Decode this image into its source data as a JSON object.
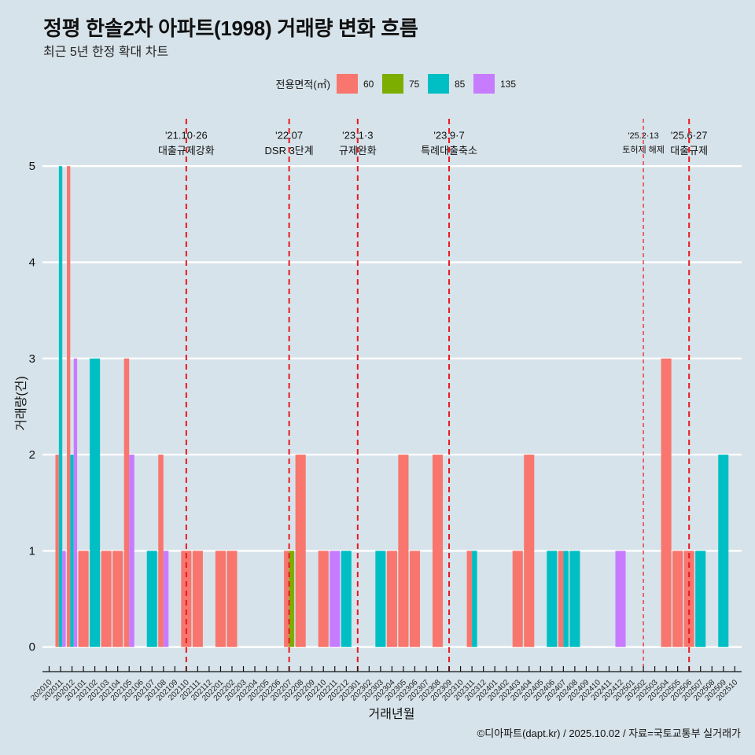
{
  "chart_data": {
    "type": "bar",
    "title": "정평 한솔2차 아파트(1998) 거래량 변화 흐름",
    "subtitle": "최근 5년 한정 확대 차트",
    "xlabel": "거래년월",
    "ylabel": "거래량(건)",
    "ylim": [
      -0.25,
      5.5
    ],
    "y_ticks": [
      0,
      1,
      2,
      3,
      4,
      5
    ],
    "grid": "horizontal",
    "legend": {
      "title": "전용면적(㎡)",
      "position": "top"
    },
    "categories": [
      "202010",
      "202011",
      "202012",
      "202101",
      "202102",
      "202103",
      "202104",
      "202105",
      "202106",
      "202107",
      "202108",
      "202109",
      "202110",
      "202111",
      "202112",
      "202201",
      "202202",
      "202203",
      "202204",
      "202205",
      "202206",
      "202207",
      "202208",
      "202209",
      "202210",
      "202211",
      "202212",
      "202301",
      "202302",
      "202303",
      "202304",
      "202305",
      "202306",
      "202307",
      "202308",
      "202309",
      "202310",
      "202311",
      "202312",
      "202401",
      "202402",
      "202403",
      "202404",
      "202405",
      "202406",
      "202407",
      "202408",
      "202409",
      "202410",
      "202411",
      "202412",
      "202501",
      "202502",
      "202503",
      "202504",
      "202505",
      "202506",
      "202507",
      "202508",
      "202509",
      "202510"
    ],
    "series": [
      {
        "name": "60",
        "color": "#F8766D",
        "values": [
          0,
          2,
          5,
          1,
          0,
          1,
          1,
          3,
          0,
          0,
          2,
          0,
          1,
          1,
          0,
          1,
          1,
          0,
          0,
          0,
          0,
          1,
          2,
          0,
          1,
          0,
          0,
          0,
          0,
          0,
          1,
          2,
          1,
          0,
          2,
          0,
          0,
          1,
          0,
          0,
          0,
          1,
          2,
          0,
          0,
          1,
          0,
          0,
          0,
          0,
          0,
          0,
          0,
          0,
          3,
          1,
          1,
          0,
          0,
          0,
          0
        ]
      },
      {
        "name": "75",
        "color": "#7CAE00",
        "values": [
          0,
          0,
          0,
          0,
          0,
          0,
          0,
          0,
          0,
          0,
          0,
          0,
          0,
          0,
          0,
          0,
          0,
          0,
          0,
          0,
          0,
          1,
          0,
          0,
          0,
          0,
          0,
          0,
          0,
          0,
          0,
          0,
          0,
          0,
          0,
          0,
          0,
          0,
          0,
          0,
          0,
          0,
          0,
          0,
          0,
          0,
          0,
          0,
          0,
          0,
          0,
          0,
          0,
          0,
          0,
          0,
          0,
          0,
          0,
          0,
          0
        ]
      },
      {
        "name": "85",
        "color": "#00BFC4",
        "values": [
          0,
          5,
          2,
          0,
          3,
          0,
          0,
          0,
          0,
          1,
          0,
          0,
          0,
          0,
          0,
          0,
          0,
          0,
          0,
          0,
          0,
          0,
          0,
          0,
          0,
          0,
          1,
          0,
          0,
          1,
          0,
          0,
          0,
          0,
          0,
          0,
          0,
          1,
          0,
          0,
          0,
          0,
          0,
          0,
          1,
          1,
          1,
          0,
          0,
          0,
          0,
          0,
          0,
          0,
          0,
          0,
          0,
          1,
          0,
          2,
          0
        ]
      },
      {
        "name": "135",
        "color": "#C77CFF",
        "values": [
          0,
          1,
          3,
          0,
          0,
          0,
          0,
          2,
          0,
          0,
          1,
          0,
          0,
          0,
          0,
          0,
          0,
          0,
          0,
          0,
          0,
          0,
          0,
          0,
          0,
          1,
          0,
          0,
          0,
          0,
          0,
          0,
          0,
          0,
          0,
          0,
          0,
          0,
          0,
          0,
          0,
          0,
          0,
          0,
          0,
          0,
          0,
          0,
          0,
          0,
          1,
          0,
          0,
          0,
          0,
          0,
          0,
          0,
          0,
          0,
          0
        ]
      }
    ],
    "reference_lines": [
      {
        "x": "202110",
        "date_label": "'21.10·26",
        "label": "대출규제강화",
        "color": "#E8191F",
        "style": "dashed",
        "emphasis": "major"
      },
      {
        "x": "202207",
        "date_label": "'22.07",
        "label": "DSR 3단계",
        "color": "#E8191F",
        "style": "dashed",
        "emphasis": "major"
      },
      {
        "x": "202301",
        "date_label": "'23.1·3",
        "label": "규제완화",
        "color": "#E8191F",
        "style": "dashed",
        "emphasis": "major"
      },
      {
        "x": "202309",
        "date_label": "'23.9·7",
        "label": "특례대출축소",
        "color": "#E8191F",
        "style": "dashed",
        "emphasis": "major"
      },
      {
        "x": "202502",
        "date_label": "'25.2·13",
        "label": "토허제 해제",
        "color": "#E8191F",
        "style": "dashed",
        "emphasis": "minor"
      },
      {
        "x": "202506",
        "date_label": "'25.6·27",
        "label": "대출규제",
        "color": "#E8191F",
        "style": "dashed",
        "emphasis": "major"
      }
    ],
    "caption": "©디아파트(dapt.kr) / 2025.10.02 / 자료=국토교통부 실거래가"
  }
}
